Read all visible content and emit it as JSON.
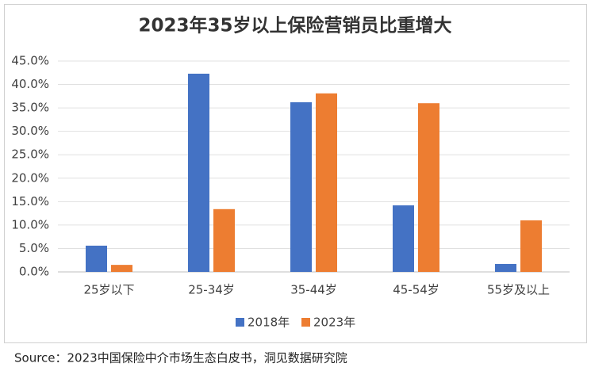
{
  "chart_data": {
    "type": "bar",
    "title": "2023年35岁以上保险营销员比重增大",
    "categories": [
      "25岁以下",
      "25-34岁",
      "35-44岁",
      "45-54岁",
      "55岁及以上"
    ],
    "series": [
      {
        "name": "2018年",
        "color": "#4472c4",
        "values": [
          5.6,
          42.3,
          36.2,
          14.2,
          1.7
        ]
      },
      {
        "name": "2023年",
        "color": "#ed7d31",
        "values": [
          1.5,
          13.4,
          38.1,
          36.0,
          11.0
        ]
      }
    ],
    "ylim": [
      0,
      45
    ],
    "yticks": [
      {
        "value": 0,
        "label": "0.0%"
      },
      {
        "value": 5,
        "label": "5.0%"
      },
      {
        "value": 10,
        "label": "10.0%"
      },
      {
        "value": 15,
        "label": "15.0%"
      },
      {
        "value": 20,
        "label": "20.0%"
      },
      {
        "value": 25,
        "label": "25.0%"
      },
      {
        "value": 30,
        "label": "30.0%"
      },
      {
        "value": 35,
        "label": "35.0%"
      },
      {
        "value": 40,
        "label": "40.0%"
      },
      {
        "value": 45,
        "label": "45.0%"
      }
    ],
    "grid": true,
    "legend": "bottom",
    "source": "Source：2023中国保险中介市场生态白皮书，洞见数据研究院"
  }
}
